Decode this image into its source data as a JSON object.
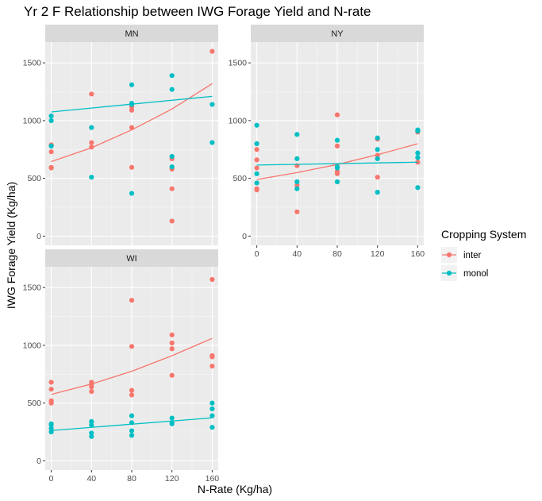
{
  "chart_data": {
    "type": "scatter",
    "title": "Yr 2 F Relationship between IWG Forage Yield and N-rate",
    "xlabel": "N-Rate (Kg/ha)",
    "ylabel": "IWG Forage Yield (Kg/ha)",
    "x_ticks": [
      0,
      40,
      80,
      120,
      160
    ],
    "y_ticks": [
      0,
      500,
      1000,
      1500
    ],
    "xlim": [
      -6,
      166
    ],
    "ylim": [
      -80,
      1680
    ],
    "legend": {
      "title": "Cropping System",
      "position": "right",
      "entries": [
        {
          "label": "inter",
          "color": "#F8766D"
        },
        {
          "label": "monol",
          "color": "#00BFC4"
        }
      ]
    },
    "panels": [
      {
        "name": "MN",
        "series": [
          {
            "name": "inter",
            "points": [
              [
                0,
                590
              ],
              [
                0,
                595
              ],
              [
                0,
                730
              ],
              [
                0,
                790
              ],
              [
                40,
                770
              ],
              [
                40,
                810
              ],
              [
                40,
                1230
              ],
              [
                80,
                595
              ],
              [
                80,
                940
              ],
              [
                80,
                1090
              ],
              [
                80,
                1120
              ],
              [
                120,
                130
              ],
              [
                120,
                410
              ],
              [
                120,
                580
              ],
              [
                120,
                670
              ],
              [
                160,
                1600
              ]
            ],
            "trend": [
              [
                0,
                645
              ],
              [
                40,
                765
              ],
              [
                80,
                920
              ],
              [
                120,
                1100
              ],
              [
                160,
                1320
              ]
            ]
          },
          {
            "name": "monol",
            "points": [
              [
                0,
                780
              ],
              [
                0,
                1000
              ],
              [
                0,
                1040
              ],
              [
                40,
                510
              ],
              [
                40,
                940
              ],
              [
                80,
                370
              ],
              [
                80,
                1140
              ],
              [
                80,
                1150
              ],
              [
                80,
                1310
              ],
              [
                120,
                600
              ],
              [
                120,
                690
              ],
              [
                120,
                1270
              ],
              [
                120,
                1390
              ],
              [
                160,
                810
              ],
              [
                160,
                1140
              ]
            ],
            "trend": [
              [
                0,
                1075
              ],
              [
                160,
                1210
              ]
            ]
          }
        ]
      },
      {
        "name": "NY",
        "series": [
          {
            "name": "inter",
            "points": [
              [
                0,
                400
              ],
              [
                0,
                410
              ],
              [
                0,
                590
              ],
              [
                0,
                660
              ],
              [
                0,
                750
              ],
              [
                40,
                210
              ],
              [
                40,
                440
              ],
              [
                40,
                610
              ],
              [
                80,
                540
              ],
              [
                80,
                560
              ],
              [
                80,
                780
              ],
              [
                80,
                1050
              ],
              [
                120,
                510
              ],
              [
                120,
                700
              ],
              [
                120,
                840
              ],
              [
                160,
                640
              ],
              [
                160,
                900
              ]
            ],
            "trend": [
              [
                0,
                490
              ],
              [
                40,
                550
              ],
              [
                80,
                620
              ],
              [
                120,
                705
              ],
              [
                160,
                800
              ]
            ]
          },
          {
            "name": "monol",
            "points": [
              [
                0,
                460
              ],
              [
                0,
                540
              ],
              [
                0,
                800
              ],
              [
                0,
                960
              ],
              [
                40,
                410
              ],
              [
                40,
                470
              ],
              [
                40,
                670
              ],
              [
                40,
                880
              ],
              [
                80,
                470
              ],
              [
                80,
                590
              ],
              [
                80,
                600
              ],
              [
                80,
                830
              ],
              [
                120,
                380
              ],
              [
                120,
                670
              ],
              [
                120,
                750
              ],
              [
                120,
                850
              ],
              [
                160,
                420
              ],
              [
                160,
                680
              ],
              [
                160,
                720
              ],
              [
                160,
                910
              ],
              [
                160,
                920
              ]
            ],
            "trend": [
              [
                0,
                615
              ],
              [
                160,
                640
              ]
            ]
          }
        ]
      },
      {
        "name": "WI",
        "series": [
          {
            "name": "inter",
            "points": [
              [
                0,
                500
              ],
              [
                0,
                520
              ],
              [
                0,
                620
              ],
              [
                0,
                680
              ],
              [
                40,
                600
              ],
              [
                40,
                640
              ],
              [
                40,
                660
              ],
              [
                40,
                680
              ],
              [
                80,
                570
              ],
              [
                80,
                610
              ],
              [
                80,
                990
              ],
              [
                80,
                1390
              ],
              [
                120,
                740
              ],
              [
                120,
                970
              ],
              [
                120,
                1020
              ],
              [
                120,
                1090
              ],
              [
                160,
                820
              ],
              [
                160,
                900
              ],
              [
                160,
                910
              ],
              [
                160,
                1570
              ]
            ],
            "trend": [
              [
                0,
                575
              ],
              [
                40,
                665
              ],
              [
                80,
                775
              ],
              [
                120,
                910
              ],
              [
                160,
                1060
              ]
            ]
          },
          {
            "name": "monol",
            "points": [
              [
                0,
                250
              ],
              [
                0,
                280
              ],
              [
                0,
                310
              ],
              [
                0,
                320
              ],
              [
                40,
                210
              ],
              [
                40,
                240
              ],
              [
                40,
                310
              ],
              [
                40,
                340
              ],
              [
                80,
                220
              ],
              [
                80,
                260
              ],
              [
                80,
                330
              ],
              [
                80,
                390
              ],
              [
                120,
                320
              ],
              [
                120,
                330
              ],
              [
                120,
                370
              ],
              [
                160,
                290
              ],
              [
                160,
                390
              ],
              [
                160,
                450
              ],
              [
                160,
                500
              ]
            ],
            "trend": [
              [
                0,
                262
              ],
              [
                160,
                372
              ]
            ]
          }
        ]
      }
    ]
  }
}
